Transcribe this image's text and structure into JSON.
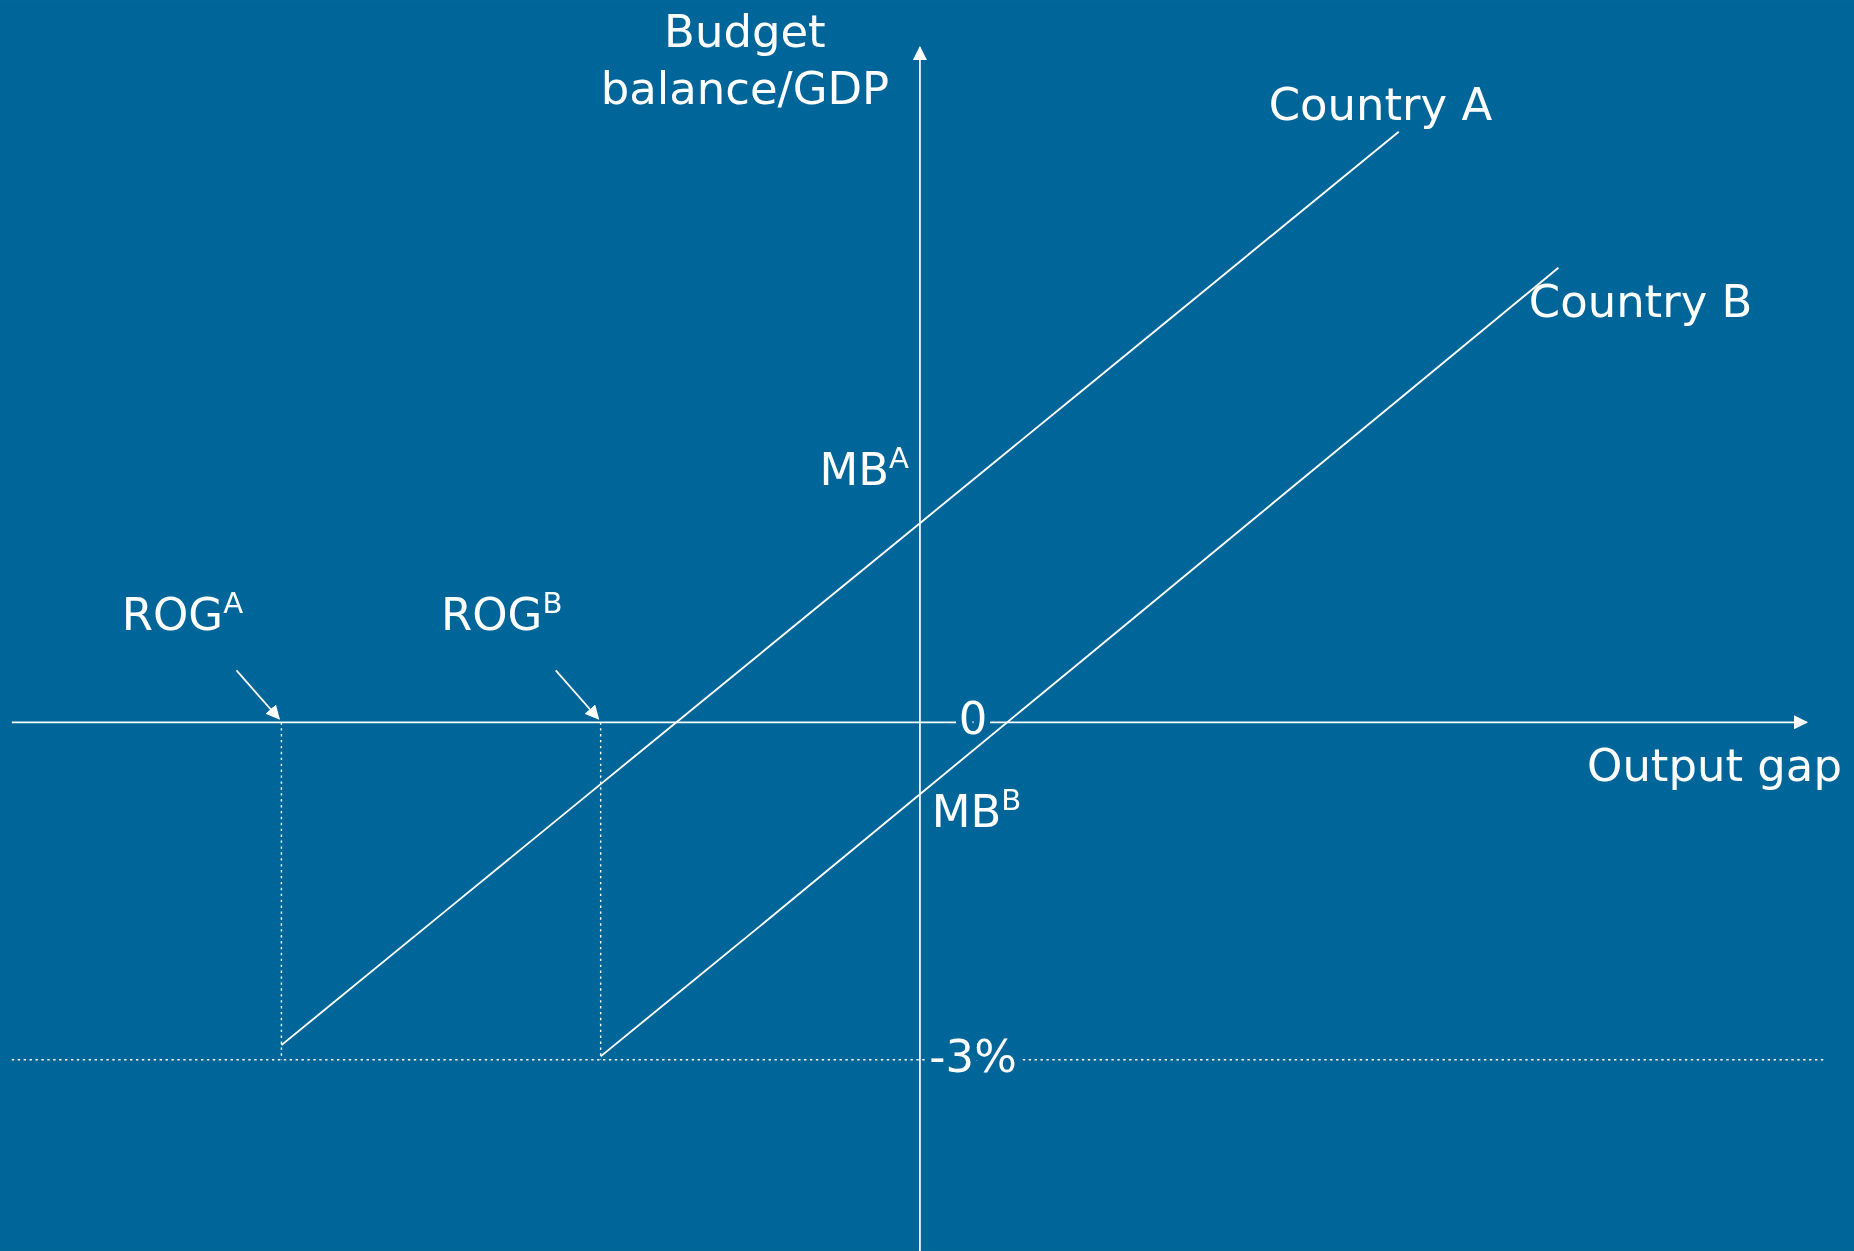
{
  "chart_data": {
    "type": "line",
    "xlabel": "Output gap",
    "ylabel": "Budget balance/GDP",
    "categories": [
      null,
      null,
      null,
      null,
      null,
      null,
      null,
      null,
      null,
      null
    ],
    "series": [
      {
        "name": "Country A",
        "color": "#ffffff",
        "values": [
          null,
          -2.87,
          -1.71,
          -0.55,
          0.61,
          1.77,
          2.93,
          4.09,
          5.25,
          null
        ]
      },
      {
        "name": "Country B",
        "color": "#ffffff",
        "values": [
          null,
          null,
          null,
          -2.97,
          -1.81,
          -0.64,
          0.53,
          1.7,
          2.87,
          4.04
        ]
      }
    ],
    "ylim": [
      -4.7,
      6.0
    ],
    "yticks": [
      {
        "value": -3,
        "label": "-3%"
      },
      {
        "value": 0,
        "label": "0"
      }
    ],
    "ref_lines": [
      {
        "axis": "y",
        "value": -3,
        "label": null,
        "line_style": "dotted",
        "color": "#ffffff"
      }
    ],
    "annotations": [
      "MB$^{A}$",
      "MB$^{B}$",
      "ROG$^{A}$",
      "ROG$^{B}$"
    ],
    "grid": false,
    "legend": false,
    "marker": "none",
    "line_style": "solid"
  }
}
